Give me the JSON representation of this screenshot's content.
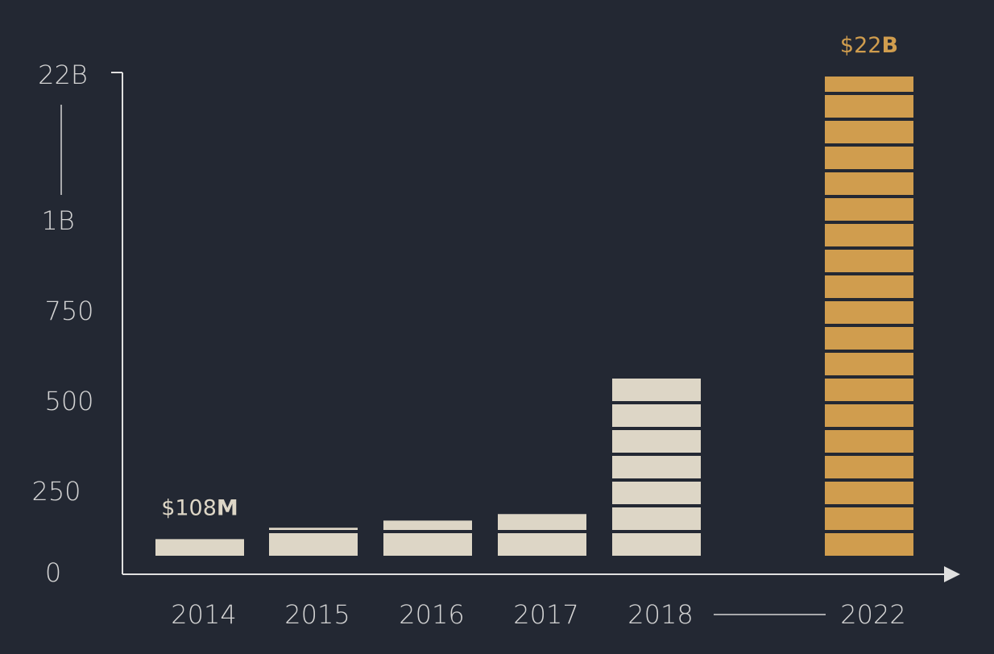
{
  "chart_data": {
    "type": "bar",
    "categories": [
      "2014",
      "2015",
      "2016",
      "2017",
      "2018",
      "2022"
    ],
    "values": [
      108,
      143,
      165,
      185,
      570,
      22000
    ],
    "value_labels": [
      "$108M",
      null,
      null,
      null,
      null,
      "$22B"
    ],
    "colors": [
      "#ddd6c6",
      "#ddd6c6",
      "#ddd6c6",
      "#ddd6c6",
      "#ddd6c6",
      "#d09d4e"
    ],
    "ylim": [
      0,
      22000
    ],
    "yticks": [
      0,
      250,
      500,
      750,
      {
        "value": 1000,
        "label": "1B"
      },
      {
        "value": 22000,
        "label": "22B"
      }
    ]
  }
}
